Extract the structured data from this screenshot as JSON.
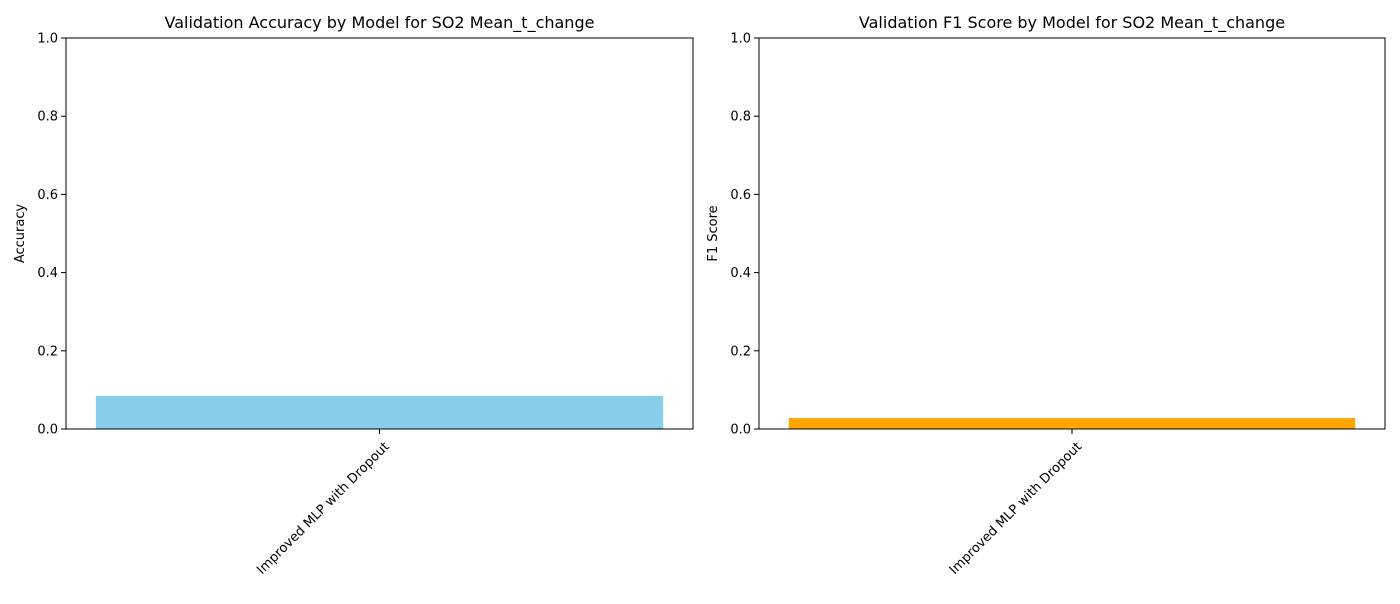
{
  "chart_data": [
    {
      "type": "bar",
      "title": "Validation Accuracy by Model for SO2 Mean_t_change",
      "xlabel": "",
      "ylabel": "Accuracy",
      "categories": [
        "Improved MLP with Dropout"
      ],
      "values": [
        0.085
      ],
      "ylim": [
        0,
        1
      ],
      "yticks": [
        "0.0",
        "0.2",
        "0.4",
        "0.6",
        "0.8",
        "1.0"
      ],
      "color": "#87ceeb",
      "grid": false
    },
    {
      "type": "bar",
      "title": "Validation F1 Score by Model for SO2 Mean_t_change",
      "xlabel": "",
      "ylabel": "F1 Score",
      "categories": [
        "Improved MLP with Dropout"
      ],
      "values": [
        0.028
      ],
      "ylim": [
        0,
        1
      ],
      "yticks": [
        "0.0",
        "0.2",
        "0.4",
        "0.6",
        "0.8",
        "1.0"
      ],
      "color": "#ffa500",
      "grid": false
    }
  ]
}
